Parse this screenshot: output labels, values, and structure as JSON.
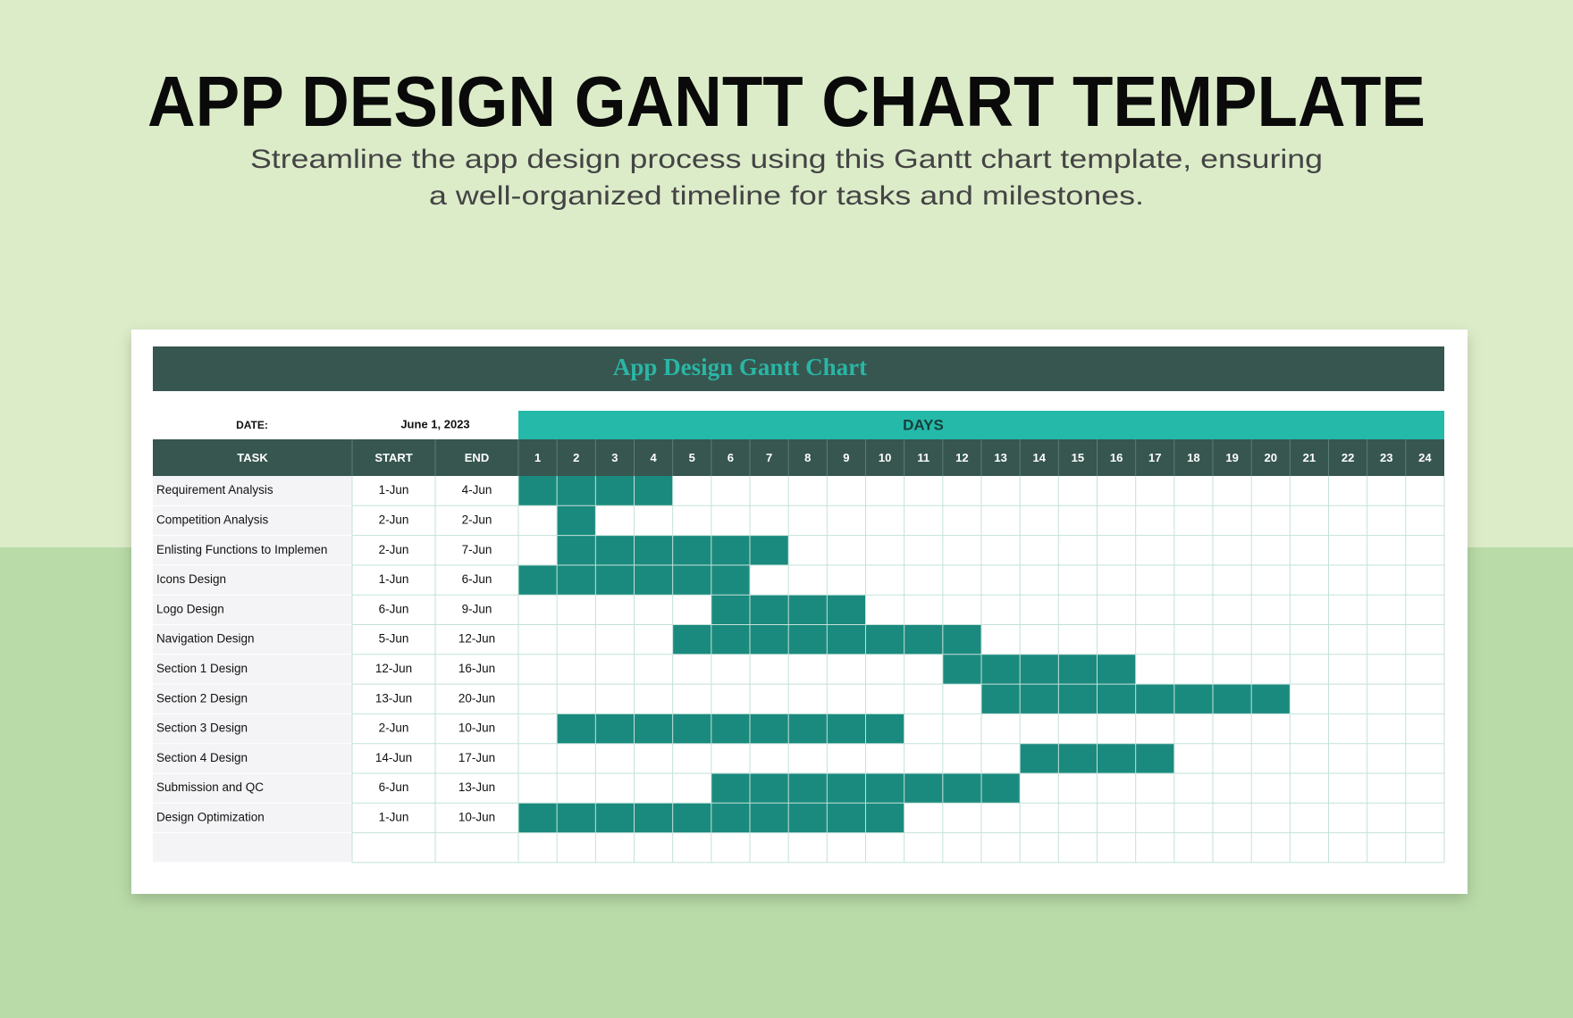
{
  "header": {
    "title": "APP DESIGN GANTT CHART TEMPLATE",
    "subtitle": [
      "Streamline the app design process using this Gantt chart template, ensuring",
      "a well-organized timeline for tasks and milestones."
    ]
  },
  "sheet": {
    "title": "App Design Gantt Chart",
    "date_label": "DATE:",
    "date": "June 1, 2023",
    "days_label": "DAYS",
    "columns": [
      "TASK",
      "START",
      "END"
    ],
    "days": [
      1,
      2,
      3,
      4,
      5,
      6,
      7,
      8,
      9,
      10,
      11,
      12,
      13,
      14,
      15,
      16,
      17,
      18,
      19,
      20,
      21,
      22,
      23,
      24
    ],
    "bar_color": "#1b8a7e",
    "tasks": [
      {
        "name": "Requirement Analysis",
        "start": "1-Jun",
        "end": "4-Jun",
        "span": [
          1,
          4
        ]
      },
      {
        "name": "Competition Analysis",
        "start": "2-Jun",
        "end": "2-Jun",
        "span": [
          2,
          2
        ]
      },
      {
        "name": "Enlisting Functions to Implemen",
        "start": "2-Jun",
        "end": "7-Jun",
        "span": [
          2,
          7
        ]
      },
      {
        "name": "Icons Design",
        "start": "1-Jun",
        "end": "6-Jun",
        "span": [
          1,
          6
        ]
      },
      {
        "name": "Logo Design",
        "start": "6-Jun",
        "end": "9-Jun",
        "span": [
          6,
          9
        ]
      },
      {
        "name": "Navigation Design",
        "start": "5-Jun",
        "end": "12-Jun",
        "span": [
          5,
          12
        ]
      },
      {
        "name": "Section 1 Design",
        "start": "12-Jun",
        "end": "16-Jun",
        "span": [
          12,
          16
        ]
      },
      {
        "name": "Section 2 Design",
        "start": "13-Jun",
        "end": "20-Jun",
        "span": [
          13,
          20
        ]
      },
      {
        "name": "Section 3 Design",
        "start": "2-Jun",
        "end": "10-Jun",
        "span": [
          2,
          10
        ]
      },
      {
        "name": "Section 4 Design",
        "start": "14-Jun",
        "end": "17-Jun",
        "span": [
          14,
          17
        ]
      },
      {
        "name": "Submission and QC",
        "start": "6-Jun",
        "end": "13-Jun",
        "span": [
          6,
          13
        ]
      },
      {
        "name": "Design Optimization",
        "start": "1-Jun",
        "end": "10-Jun",
        "span": [
          1,
          10
        ]
      }
    ]
  }
}
